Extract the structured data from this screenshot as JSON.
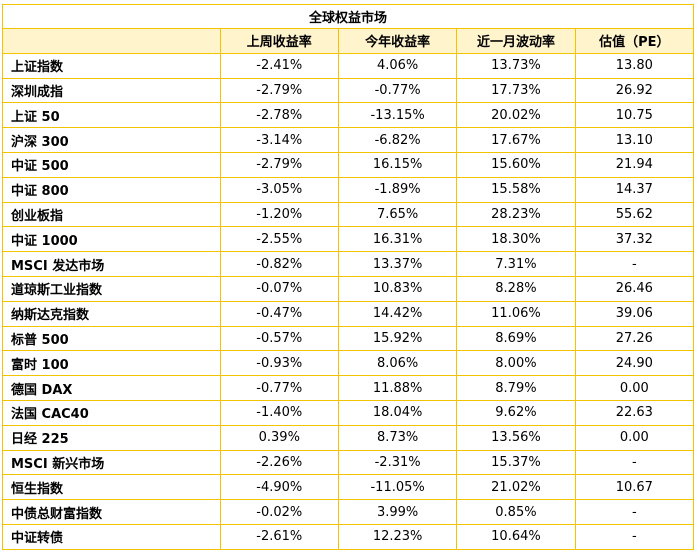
{
  "table": {
    "title": "全球权益市场",
    "header": [
      "上周收益率",
      "今年收益率",
      "近一月波动率",
      "估值（PE）"
    ],
    "rows": [
      [
        "上证指数",
        "-2.41%",
        "4.06%",
        "13.73%",
        "13.80"
      ],
      [
        "深圳成指",
        "-2.79%",
        "-0.77%",
        "17.73%",
        "26.92"
      ],
      [
        "上证 50",
        "-2.78%",
        "-13.15%",
        "20.02%",
        "10.75"
      ],
      [
        "沪深 300",
        "-3.14%",
        "-6.82%",
        "17.67%",
        "13.10"
      ],
      [
        "中证 500",
        "-2.79%",
        "16.15%",
        "15.60%",
        "21.94"
      ],
      [
        "中证 800",
        "-3.05%",
        "-1.89%",
        "15.58%",
        "14.37"
      ],
      [
        "创业板指",
        "-1.20%",
        "7.65%",
        "28.23%",
        "55.62"
      ],
      [
        "中证 1000",
        "-2.55%",
        "16.31%",
        "18.30%",
        "37.32"
      ],
      [
        "MSCI 发达市场",
        "-0.82%",
        "13.37%",
        "7.31%",
        "-"
      ],
      [
        "道琼斯工业指数",
        "-0.07%",
        "10.83%",
        "8.28%",
        "26.46"
      ],
      [
        "纳斯达克指数",
        "-0.47%",
        "14.42%",
        "11.06%",
        "39.06"
      ],
      [
        "标普 500",
        "-0.57%",
        "15.92%",
        "8.69%",
        "27.26"
      ],
      [
        "富时 100",
        "-0.93%",
        "8.06%",
        "8.00%",
        "24.90"
      ],
      [
        "德国 DAX",
        "-0.77%",
        "11.88%",
        "8.79%",
        "0.00"
      ],
      [
        "法国 CAC40",
        "-1.40%",
        "18.04%",
        "9.62%",
        "22.63"
      ],
      [
        "日经 225",
        "0.39%",
        "8.73%",
        "13.56%",
        "0.00"
      ],
      [
        "MSCI 新兴市场",
        "-2.26%",
        "-2.31%",
        "15.37%",
        "-"
      ],
      [
        "恒生指数",
        "-4.90%",
        "-11.05%",
        "21.02%",
        "10.67"
      ],
      [
        "中债总财富指数",
        "-0.02%",
        "3.99%",
        "0.85%",
        "-"
      ],
      [
        "中证转债",
        "-2.61%",
        "12.23%",
        "10.64%",
        "-"
      ]
    ]
  }
}
